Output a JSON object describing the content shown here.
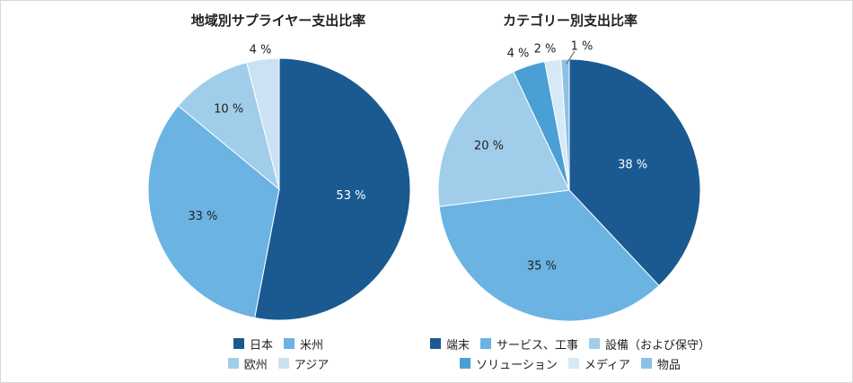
{
  "chart_data": [
    {
      "type": "pie",
      "title": "地域別サプライヤー支出比率",
      "slices": [
        {
          "label": "日本",
          "value": 53,
          "display": "53 %",
          "color": "#1a5a91"
        },
        {
          "label": "米州",
          "value": 33,
          "display": "33 %",
          "color": "#6bb3e3"
        },
        {
          "label": "欧州",
          "value": 10,
          "display": "10 %",
          "color": "#a0cdea"
        },
        {
          "label": "アジア",
          "value": 4,
          "display": "4 %",
          "color": "#cbe2f2"
        }
      ],
      "legend_rows": [
        [
          "日本",
          "米州"
        ],
        [
          "欧州",
          "アジア"
        ]
      ]
    },
    {
      "type": "pie",
      "title": "カテゴリー別支出比率",
      "slices": [
        {
          "label": "端末",
          "value": 38,
          "display": "38 %",
          "color": "#1a5a91"
        },
        {
          "label": "サービス、工事",
          "value": 35,
          "display": "35 %",
          "color": "#6bb3e3"
        },
        {
          "label": "設備（および保守）",
          "value": 20,
          "display": "20 %",
          "color": "#a0cdea"
        },
        {
          "label": "ソリューション",
          "value": 4,
          "display": "4 %",
          "color": "#4a9fd4"
        },
        {
          "label": "メディア",
          "value": 2,
          "display": "2 %",
          "color": "#d6e9f6"
        },
        {
          "label": "物品",
          "value": 1,
          "display": "1 %",
          "color": "#8cc1e6"
        }
      ],
      "legend_rows": [
        [
          "端末",
          "サービス、工事",
          "設備（および保守）"
        ],
        [
          "ソリューション",
          "メディア",
          "物品"
        ]
      ]
    }
  ]
}
